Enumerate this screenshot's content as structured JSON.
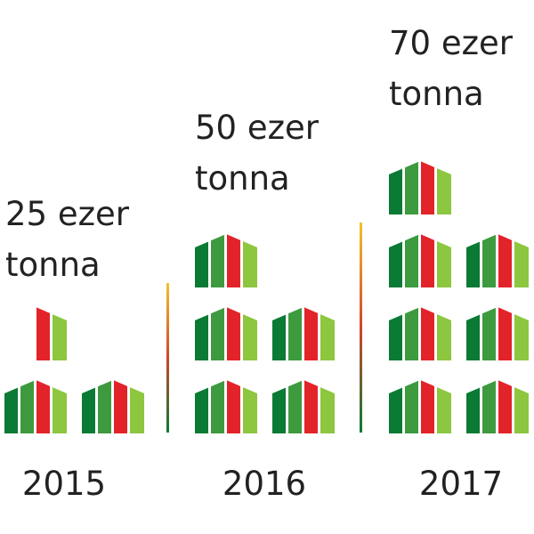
{
  "chart_data": {
    "type": "pictogram",
    "title": "",
    "unit_per_icon": 10,
    "categories": [
      "2015",
      "2016",
      "2017"
    ],
    "values": [
      25,
      50,
      70
    ],
    "labels": [
      "25 ezer\ntonna",
      "50 ezer\ntonna",
      "70 ezer\ntonna"
    ],
    "icon": "greenhouse-icon",
    "colors": {
      "dark_green": "#0a7a34",
      "mid_green": "#3d9a3f",
      "light_green": "#8dc63f",
      "red": "#e3232a",
      "divider_top": "#f2c12e",
      "divider_mid": "#d0452a",
      "divider_bottom": "#0a7a34"
    }
  }
}
